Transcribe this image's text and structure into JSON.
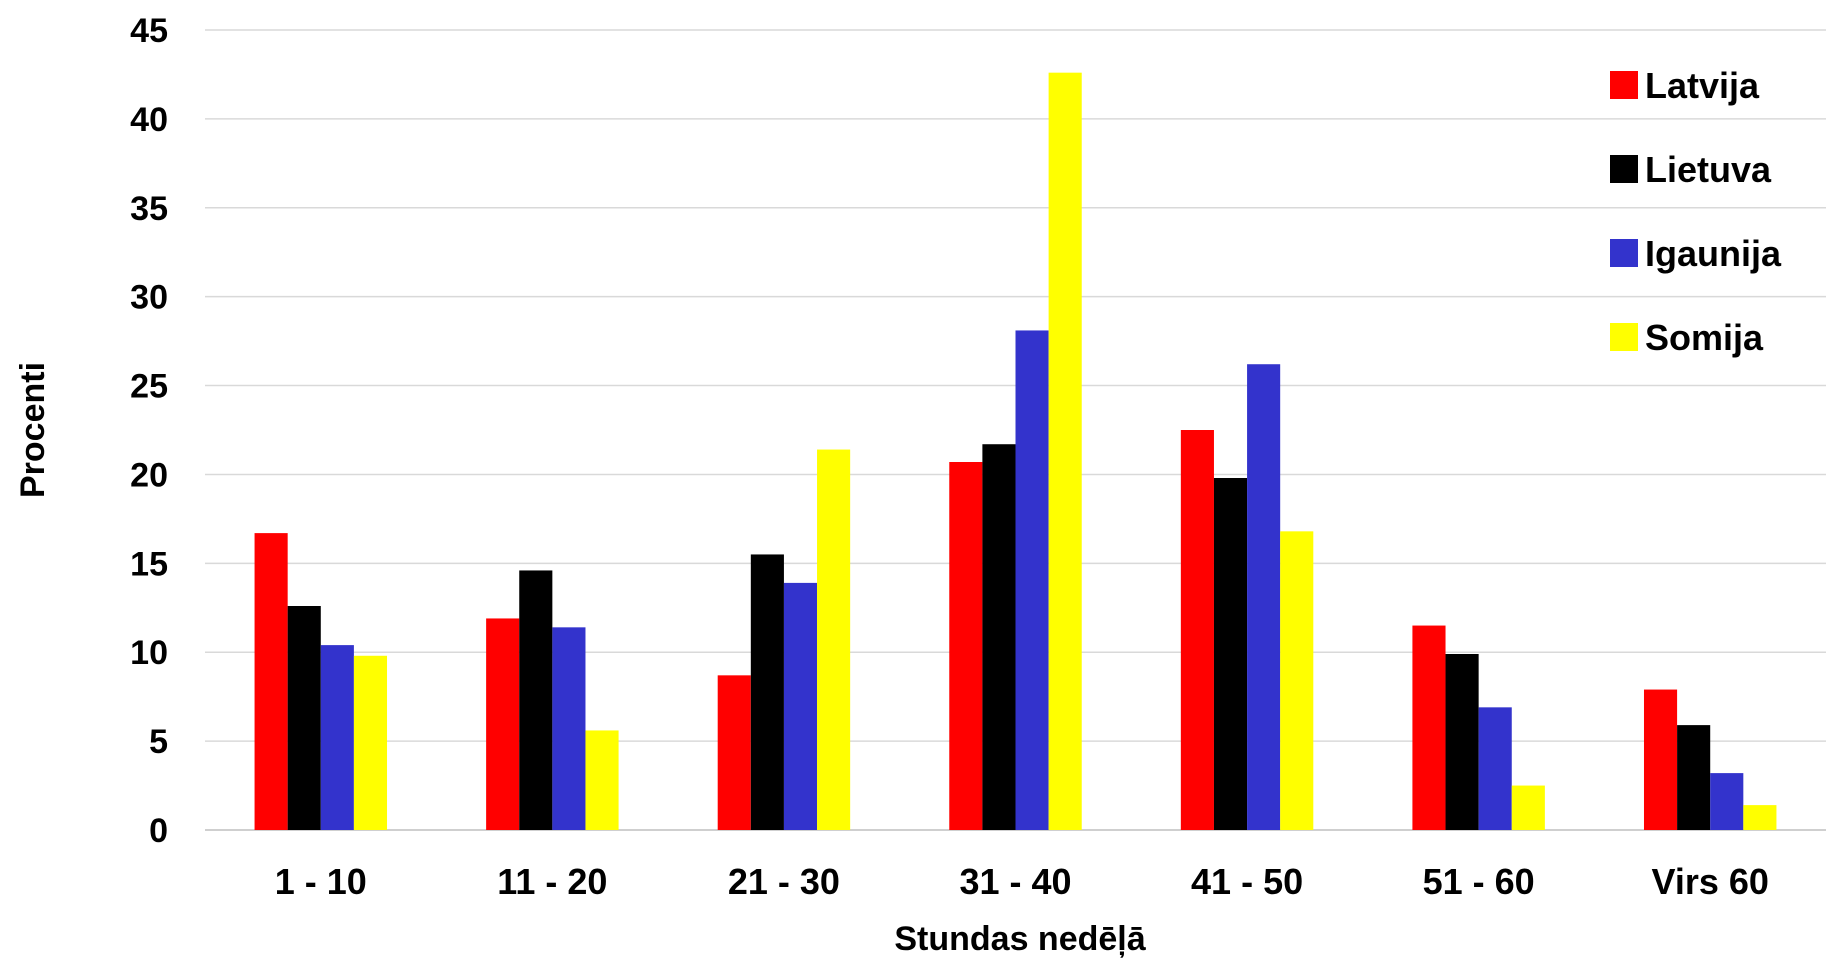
{
  "chart_data": {
    "type": "bar",
    "title": "",
    "xlabel": "Stundas nedēļā",
    "ylabel": "Procenti",
    "ylim": [
      0,
      45
    ],
    "y_ticks": [
      "0",
      "5",
      "10",
      "15",
      "20",
      "25",
      "30",
      "35",
      "40",
      "45"
    ],
    "grid": true,
    "legend_position": "top-right",
    "categories": [
      "1 - 10",
      "11 - 20",
      "21 - 30",
      "31 - 40",
      "41 - 50",
      "51 - 60",
      "Virs 60"
    ],
    "series": [
      {
        "name": "Latvija",
        "color": "#ff0000",
        "values": [
          16.7,
          11.9,
          8.7,
          20.7,
          22.5,
          11.5,
          7.9
        ]
      },
      {
        "name": "Lietuva",
        "color": "#000000",
        "values": [
          12.6,
          14.6,
          15.5,
          21.7,
          19.8,
          9.9,
          5.9
        ]
      },
      {
        "name": "Igaunija",
        "color": "#3333cc",
        "values": [
          10.4,
          11.4,
          13.9,
          28.1,
          26.2,
          6.9,
          3.2
        ]
      },
      {
        "name": "Somija",
        "color": "#ffff00",
        "values": [
          9.8,
          5.6,
          21.4,
          42.6,
          16.8,
          2.5,
          1.4
        ]
      }
    ]
  }
}
